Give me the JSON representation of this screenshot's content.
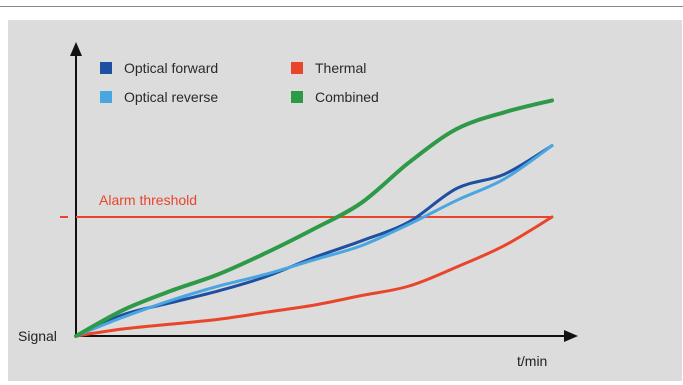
{
  "chart_data": {
    "type": "line",
    "title": "",
    "xlabel": "t/min",
    "ylabel": "Signal",
    "grid": false,
    "legend_placement": "top-left",
    "threshold": {
      "label": "Alarm threshold",
      "value": 0.5,
      "color": "#e8452a"
    },
    "x": [
      0,
      0.1,
      0.2,
      0.3,
      0.4,
      0.5,
      0.6,
      0.7,
      0.8,
      0.9,
      1.0
    ],
    "series": [
      {
        "name": "Optical forward",
        "color": "#1f4fa0",
        "values": [
          0.0,
          0.09,
          0.14,
          0.19,
          0.25,
          0.33,
          0.4,
          0.48,
          0.62,
          0.68,
          0.8
        ]
      },
      {
        "name": "Optical reverse",
        "color": "#4aa6e0",
        "values": [
          0.0,
          0.08,
          0.15,
          0.21,
          0.26,
          0.32,
          0.38,
          0.47,
          0.57,
          0.66,
          0.8
        ]
      },
      {
        "name": "Thermal",
        "color": "#e8452a",
        "values": [
          0.0,
          0.03,
          0.05,
          0.07,
          0.1,
          0.13,
          0.17,
          0.21,
          0.29,
          0.38,
          0.5
        ]
      },
      {
        "name": "Combined",
        "color": "#2e9a48",
        "values": [
          0.0,
          0.11,
          0.19,
          0.26,
          0.35,
          0.45,
          0.56,
          0.73,
          0.87,
          0.94,
          0.99
        ]
      }
    ]
  }
}
